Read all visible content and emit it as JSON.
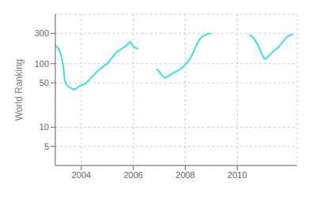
{
  "chart_data": {
    "type": "line",
    "ylabel": "World Ranking",
    "color": "#00e0e0",
    "log": "y",
    "grid": true,
    "xlim": [
      2003.0,
      2012.3
    ],
    "xticks": [
      2004,
      2006,
      2008,
      2010
    ],
    "ylim": [
      2.5,
      600
    ],
    "yticks": [
      5,
      10,
      50,
      100,
      300
    ],
    "series": [
      {
        "color": "#00e0e0",
        "x": [
          2003.0,
          2003.03,
          2003.06,
          2003.1,
          2003.13,
          2003.17,
          2003.2,
          2003.24,
          2003.27,
          2003.31,
          2003.35,
          2003.38,
          2003.42,
          2003.46,
          2003.5,
          2003.54,
          2003.58,
          2003.62,
          2003.65,
          2003.69,
          2003.73,
          2003.77,
          2003.81,
          2003.85,
          2003.88,
          2003.92,
          2003.96,
          2004.0,
          2004.04,
          2004.08,
          2004.12,
          2004.15,
          2004.19,
          2004.23,
          2004.27,
          2004.31,
          2004.35,
          2004.38,
          2004.42,
          2004.46,
          2004.5,
          2004.54,
          2004.58,
          2004.62,
          2004.65,
          2004.69,
          2004.73,
          2004.77,
          2004.81,
          2004.85,
          2004.88,
          2004.92,
          2004.96,
          2005.0,
          2005.04,
          2005.08,
          2005.12,
          2005.15,
          2005.19,
          2005.23,
          2005.27,
          2005.31,
          2005.35,
          2005.38,
          2005.42,
          2005.46,
          2005.5,
          2005.54,
          2005.58,
          2005.62,
          2005.65,
          2005.69,
          2005.73,
          2005.77,
          2005.81,
          2005.85,
          2005.88,
          2005.92,
          2005.96,
          2006.0,
          2006.04,
          2006.08,
          2006.12,
          2006.15,
          2006.19
        ],
        "values": [
          195,
          190,
          185,
          178,
          170,
          158,
          145,
          128,
          110,
          90,
          60,
          52,
          47,
          45,
          44,
          43,
          42,
          41,
          40,
          40,
          39,
          40,
          41,
          42,
          43,
          44,
          45,
          46,
          46,
          47,
          47,
          48,
          50,
          52,
          54,
          56,
          58,
          60,
          63,
          65,
          67,
          70,
          73,
          76,
          78,
          80,
          82,
          85,
          88,
          90,
          92,
          95,
          98,
          100,
          105,
          110,
          115,
          120,
          125,
          130,
          138,
          145,
          150,
          155,
          158,
          162,
          166,
          170,
          175,
          178,
          182,
          185,
          190,
          200,
          210,
          215,
          220,
          210,
          195,
          185,
          180,
          178,
          175,
          173,
          170
        ]
      },
      {
        "color": "#00e0e0",
        "x": [
          2006.88,
          2006.92,
          2006.96,
          2007.0,
          2007.04,
          2007.08,
          2007.12,
          2007.15,
          2007.19,
          2007.23,
          2007.27,
          2007.31,
          2007.35,
          2007.38,
          2007.42,
          2007.46,
          2007.5,
          2007.54,
          2007.58,
          2007.62,
          2007.65,
          2007.69,
          2007.73,
          2007.77,
          2007.81,
          2007.85,
          2007.88,
          2007.92,
          2007.96,
          2008.0,
          2008.04,
          2008.08,
          2008.12,
          2008.15,
          2008.19,
          2008.23,
          2008.27,
          2008.31,
          2008.35,
          2008.38,
          2008.42,
          2008.46,
          2008.5,
          2008.54,
          2008.58,
          2008.62,
          2008.65,
          2008.69,
          2008.73,
          2008.77,
          2008.81,
          2008.85,
          2008.88,
          2008.92,
          2008.96,
          2009.0
        ],
        "values": [
          82,
          80,
          78,
          75,
          72,
          68,
          65,
          63,
          61,
          60,
          61,
          62,
          63,
          65,
          67,
          68,
          70,
          72,
          73,
          74,
          75,
          77,
          79,
          80,
          82,
          84,
          87,
          90,
          93,
          97,
          100,
          105,
          110,
          115,
          122,
          130,
          140,
          152,
          165,
          178,
          192,
          208,
          222,
          236,
          248,
          258,
          265,
          272,
          278,
          283,
          287,
          290,
          293,
          296,
          298,
          300
        ]
      },
      {
        "color": "#00e0e0",
        "x": [
          2010.46,
          2010.5,
          2010.54,
          2010.58,
          2010.62,
          2010.65,
          2010.69,
          2010.73,
          2010.77,
          2010.81,
          2010.85,
          2010.88,
          2010.92,
          2010.96,
          2011.0,
          2011.04,
          2011.08,
          2011.12,
          2011.15,
          2011.19,
          2011.23,
          2011.27,
          2011.31,
          2011.35,
          2011.38,
          2011.42,
          2011.46,
          2011.5,
          2011.54,
          2011.58,
          2011.62,
          2011.65,
          2011.69,
          2011.73,
          2011.77,
          2011.81,
          2011.85,
          2011.88,
          2011.92,
          2011.96,
          2012.0,
          2012.04,
          2012.08,
          2012.12,
          2012.15
        ],
        "values": [
          280,
          278,
          272,
          265,
          255,
          245,
          232,
          218,
          205,
          190,
          175,
          162,
          150,
          138,
          128,
          120,
          118,
          122,
          125,
          130,
          135,
          140,
          145,
          150,
          155,
          160,
          165,
          170,
          175,
          180,
          188,
          195,
          205,
          215,
          225,
          235,
          245,
          255,
          265,
          272,
          278,
          282,
          285,
          288,
          290
        ]
      }
    ]
  }
}
